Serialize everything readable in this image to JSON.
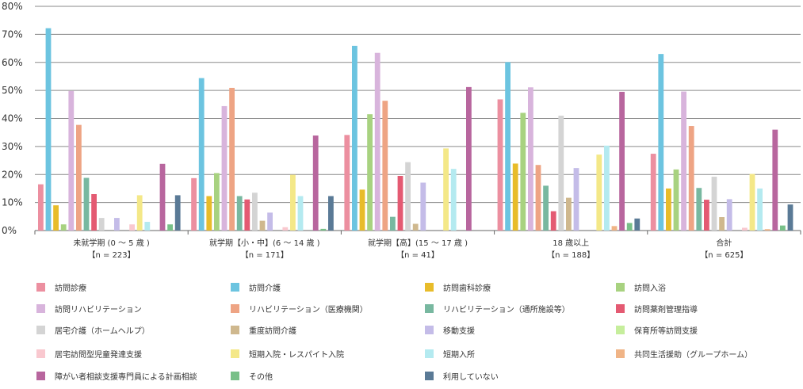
{
  "chart_data": {
    "type": "bar",
    "y_ticks": [
      "0%",
      "10%",
      "20%",
      "30%",
      "40%",
      "50%",
      "60%",
      "70%",
      "80%"
    ],
    "ylim": [
      0,
      80
    ],
    "grid": true,
    "legend_position": "bottom",
    "categories": [
      {
        "line1": "未就学期 (0 ～ 5 歳 )",
        "line2": "【n = 223】"
      },
      {
        "line1": "就学期【小・中】(6 ～ 14 歳 )",
        "line2": "【n = 171】"
      },
      {
        "line1": "就学期【高】(15 ～ 17 歳 )",
        "line2": "【n = 41】"
      },
      {
        "line1": "18 歳以上",
        "line2": "【n = 188】"
      },
      {
        "line1": "合計",
        "line2": "【n = 625】"
      }
    ],
    "series": [
      {
        "name": "訪問診療",
        "color": "#ec8fa0",
        "values": [
          16.5,
          18.7,
          34.1,
          46.8,
          27.4
        ]
      },
      {
        "name": "訪問介護",
        "color": "#6cc4e0",
        "values": [
          72.2,
          54.4,
          65.9,
          60.1,
          63.0
        ]
      },
      {
        "name": "訪問歯科診療",
        "color": "#e8bc2a",
        "values": [
          9.0,
          12.3,
          14.6,
          23.9,
          15.0
        ]
      },
      {
        "name": "訪問入浴",
        "color": "#a8d280",
        "values": [
          2.2,
          20.5,
          41.5,
          42.0,
          21.8
        ]
      },
      {
        "name": "訪問リハビリテーション",
        "color": "#d8b4dc",
        "values": [
          49.8,
          44.4,
          63.4,
          51.1,
          49.6
        ]
      },
      {
        "name": "リハビリテーション（医療機関）",
        "color": "#eea484",
        "values": [
          37.7,
          50.9,
          46.3,
          23.4,
          37.3
        ]
      },
      {
        "name": "リハビリテーション（通所施設等）",
        "color": "#78b8a0",
        "values": [
          18.8,
          12.3,
          4.9,
          16.0,
          15.2
        ]
      },
      {
        "name": "訪問薬剤管理指導",
        "color": "#e45a72",
        "values": [
          13.0,
          11.1,
          19.5,
          6.9,
          11.0
        ]
      },
      {
        "name": "居宅介護（ホームヘルプ）",
        "color": "#d4d4d4",
        "values": [
          4.5,
          13.5,
          24.4,
          41.0,
          19.2
        ]
      },
      {
        "name": "重度訪問介護",
        "color": "#cfb88e",
        "values": [
          0,
          3.5,
          2.4,
          11.7,
          4.8
        ]
      },
      {
        "name": "移動支援",
        "color": "#c4bce8",
        "values": [
          4.5,
          6.4,
          17.1,
          22.3,
          11.2
        ]
      },
      {
        "name": "保育所等訪問支援",
        "color": "#c6ee9c",
        "values": [
          0,
          0,
          0,
          0,
          0
        ]
      },
      {
        "name": "居宅訪問型児童発達支援",
        "color": "#f9c8cf",
        "values": [
          2.2,
          1.2,
          0,
          0,
          1.0
        ]
      },
      {
        "name": "短期入院・レスパイト入院",
        "color": "#f4e888",
        "values": [
          12.6,
          19.9,
          29.3,
          27.1,
          20.2
        ]
      },
      {
        "name": "短期入所",
        "color": "#b4eaf0",
        "values": [
          3.1,
          12.3,
          22.0,
          30.3,
          15.0
        ]
      },
      {
        "name": "共同生活援助（グループホーム）",
        "color": "#f0b486",
        "values": [
          0,
          0,
          0,
          1.6,
          0.5
        ]
      },
      {
        "name": "障がい者相談支援専門員による計画相談",
        "color": "#b8669e",
        "values": [
          23.8,
          33.9,
          51.2,
          49.5,
          36.0
        ]
      },
      {
        "name": "その他",
        "color": "#78c088",
        "values": [
          2.2,
          0.6,
          0,
          2.7,
          1.8
        ]
      },
      {
        "name": "利用していない",
        "color": "#5a7a96",
        "values": [
          12.6,
          12.3,
          0,
          4.3,
          9.3
        ]
      }
    ]
  }
}
